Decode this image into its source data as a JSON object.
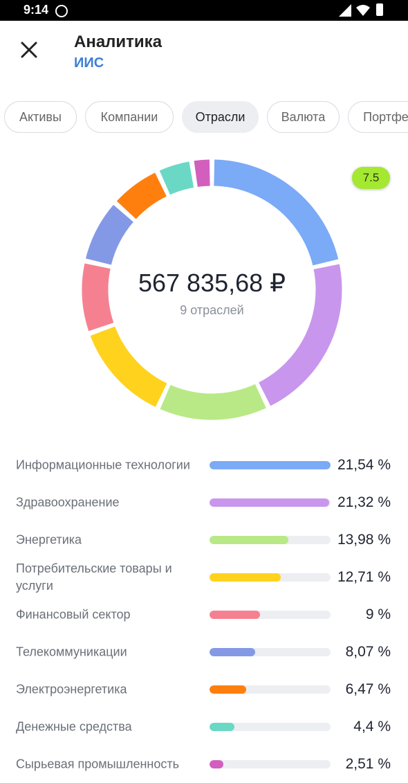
{
  "status_bar": {
    "time": "9:14"
  },
  "header": {
    "title": "Аналитика",
    "subtitle": "ИИС"
  },
  "tabs": [
    {
      "label": "Активы",
      "active": false
    },
    {
      "label": "Компании",
      "active": false
    },
    {
      "label": "Отрасли",
      "active": true
    },
    {
      "label": "Валюта",
      "active": false
    },
    {
      "label": "Портфе",
      "active": false
    }
  ],
  "summary": {
    "total": "567 835,68 ₽",
    "count_label": "9 отраслей",
    "badge": "7.5"
  },
  "sectors": [
    {
      "name": "Информационные технологии",
      "value": 21.54,
      "percent_label": "21,54 %",
      "color": "#7baaf7"
    },
    {
      "name": "Здравоохранение",
      "value": 21.32,
      "percent_label": "21,32 %",
      "color": "#c896ec"
    },
    {
      "name": "Энергетика",
      "value": 13.98,
      "percent_label": "13,98 %",
      "color": "#b8e986"
    },
    {
      "name": "Потребительские товары и услуги",
      "value": 12.71,
      "percent_label": "12,71 %",
      "color": "#ffd21e"
    },
    {
      "name": "Финансовый сектор",
      "value": 9,
      "percent_label": "9 %",
      "color": "#f58190"
    },
    {
      "name": "Телекоммуникации",
      "value": 8.07,
      "percent_label": "8,07 %",
      "color": "#8499e6"
    },
    {
      "name": "Электроэнергетика",
      "value": 6.47,
      "percent_label": "6,47 %",
      "color": "#ff7f0e"
    },
    {
      "name": "Денежные средства",
      "value": 4.4,
      "percent_label": "4,4 %",
      "color": "#6bd8c6"
    },
    {
      "name": "Сырьевая промышленность",
      "value": 2.51,
      "percent_label": "2,51 %",
      "color": "#d25fbe"
    }
  ],
  "chart_data": {
    "type": "pie",
    "categories": [
      "Информационные технологии",
      "Здравоохранение",
      "Энергетика",
      "Потребительские товары и услуги",
      "Финансовый сектор",
      "Телекоммуникации",
      "Электроэнергетика",
      "Денежные средства",
      "Сырьевая промышленность"
    ],
    "values": [
      21.54,
      21.32,
      13.98,
      12.71,
      9,
      8.07,
      6.47,
      4.4,
      2.51
    ],
    "colors": [
      "#7baaf7",
      "#c896ec",
      "#b8e986",
      "#ffd21e",
      "#f58190",
      "#8499e6",
      "#ff7f0e",
      "#6bd8c6",
      "#d25fbe"
    ],
    "style": "donut"
  },
  "icons": {
    "close": "close-icon",
    "alarm": "alarm-icon",
    "signal": "signal-icon",
    "wifi": "wifi-icon",
    "battery": "battery-icon"
  }
}
